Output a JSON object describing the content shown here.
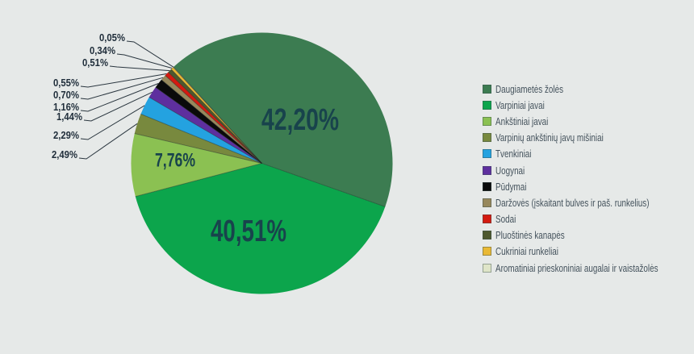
{
  "background_color": "#e6e9e8",
  "chart_data": {
    "type": "pie",
    "unit": "%",
    "decimal_separator": ",",
    "legend_position": "right",
    "start_angle_deg": -42.5,
    "direction": "clockwise",
    "slices": [
      {
        "label": "Daugiametės žolės",
        "value": 42.2,
        "display": "42,20%",
        "color": "#3c7c51"
      },
      {
        "label": "Varpiniai javai",
        "value": 40.51,
        "display": "40,51%",
        "color": "#0ca54c"
      },
      {
        "label": "Ankštiniai javai",
        "value": 7.76,
        "display": "7,76%",
        "color": "#8bc152"
      },
      {
        "label": "Varpinių ankštinių javų mišiniai",
        "value": 2.49,
        "display": "2,49%",
        "color": "#78893e"
      },
      {
        "label": "Tvenkiniai",
        "value": 2.29,
        "display": "2,29%",
        "color": "#24a2e0"
      },
      {
        "label": "Uogynai",
        "value": 1.44,
        "display": "1,44%",
        "color": "#5e2f9e"
      },
      {
        "label": "Pūdymai",
        "value": 1.16,
        "display": "1,16%",
        "color": "#0a0a0a"
      },
      {
        "label": "Daržovės (įskaitant bulves ir paš. runkelius)",
        "value": 0.7,
        "display": "0,70%",
        "color": "#97885c"
      },
      {
        "label": "Sodai",
        "value": 0.55,
        "display": "0,55%",
        "color": "#d41a10"
      },
      {
        "label": "Pluoštinės kanapės",
        "value": 0.51,
        "display": "0,51%",
        "color": "#4e582e"
      },
      {
        "label": "Cukriniai runkeliai",
        "value": 0.34,
        "display": "0,34%",
        "color": "#e9b935"
      },
      {
        "label": "Aromatiniai prieskoniniai augalai ir vaistažolės",
        "value": 0.05,
        "display": "0,05%",
        "color": "#dfe5c8"
      }
    ],
    "text_colors": {
      "inside_labels": "#18434c",
      "callout_labels": "#1f2d3a",
      "legend": "#44525c",
      "leader_lines": "#2a363f"
    }
  }
}
